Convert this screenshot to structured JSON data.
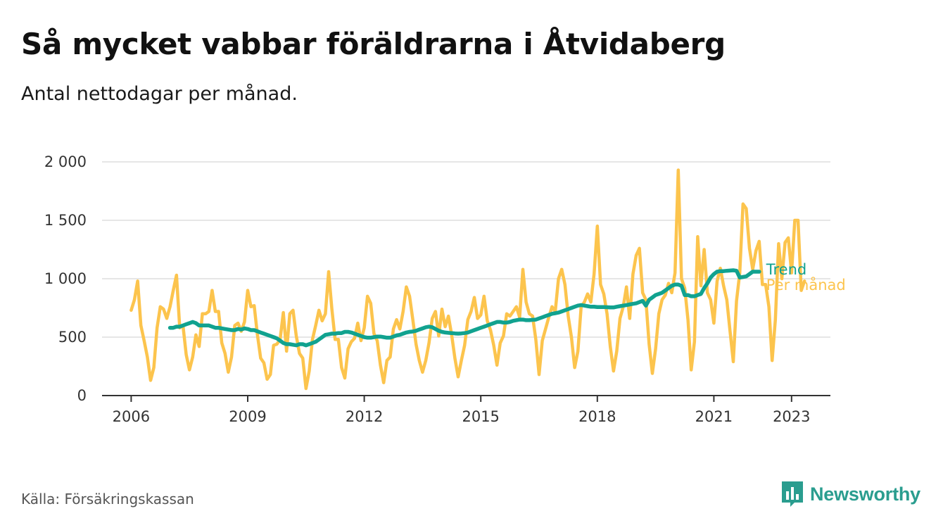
{
  "header": {
    "title": "Så mycket vabbar föräldrarna i Åtvidaberg",
    "subtitle": "Antal nettodagar per månad."
  },
  "footer": {
    "source": "Källa: Försäkringskassan",
    "brand": "Newsworthy",
    "brand_icon": "bar-chart-speech-bubble-icon"
  },
  "colors": {
    "monthly": "#fcc44d",
    "trend": "#11a28f",
    "axis": "#333333",
    "grid": "#dddddd",
    "brand": "#2a9d8f"
  },
  "chart_data": {
    "type": "line",
    "xlim": [
      2005.25,
      2024.0
    ],
    "ylim": [
      0,
      2000
    ],
    "grid": "horizontal",
    "x_ticks": [
      2006,
      2009,
      2012,
      2015,
      2018,
      2021,
      2023
    ],
    "x_tick_labels": [
      "2006",
      "2009",
      "2012",
      "2015",
      "2018",
      "2021",
      "2023"
    ],
    "y_ticks": [
      0,
      500,
      1000,
      1500,
      2000
    ],
    "y_tick_labels": [
      "0",
      "500",
      "1 000",
      "1 500",
      "2 000"
    ],
    "series": [
      {
        "name": "Per månad",
        "x_start": 2006.0,
        "x_step": 0.08333,
        "values": [
          730,
          820,
          980,
          600,
          470,
          330,
          130,
          240,
          580,
          760,
          740,
          660,
          760,
          900,
          1030,
          580,
          600,
          350,
          220,
          330,
          520,
          420,
          700,
          700,
          720,
          900,
          720,
          720,
          450,
          360,
          200,
          330,
          600,
          620,
          550,
          630,
          900,
          760,
          770,
          520,
          320,
          280,
          140,
          180,
          430,
          440,
          480,
          710,
          380,
          700,
          730,
          510,
          360,
          320,
          60,
          210,
          480,
          600,
          730,
          640,
          700,
          1060,
          740,
          480,
          480,
          240,
          150,
          400,
          460,
          490,
          620,
          470,
          580,
          850,
          790,
          530,
          470,
          260,
          110,
          300,
          330,
          570,
          650,
          570,
          720,
          930,
          850,
          650,
          440,
          300,
          200,
          300,
          450,
          660,
          720,
          510,
          740,
          590,
          680,
          520,
          320,
          160,
          300,
          430,
          650,
          720,
          840,
          660,
          690,
          850,
          640,
          560,
          430,
          260,
          450,
          510,
          700,
          680,
          720,
          760,
          670,
          1080,
          800,
          700,
          680,
          480,
          180,
          470,
          570,
          670,
          760,
          720,
          1000,
          1080,
          950,
          680,
          500,
          240,
          380,
          760,
          800,
          870,
          800,
          1040,
          1450,
          950,
          870,
          700,
          420,
          210,
          380,
          660,
          760,
          930,
          660,
          1040,
          1200,
          1260,
          880,
          820,
          440,
          190,
          400,
          700,
          820,
          860,
          960,
          880,
          1050,
          1930,
          1000,
          920,
          650,
          220,
          460,
          1360,
          940,
          1250,
          880,
          820,
          620,
          980,
          1090,
          940,
          820,
          550,
          290,
          810,
          1050,
          1640,
          1600,
          1260,
          1080,
          1240,
          1320,
          950,
          950,
          760,
          300,
          650,
          1300,
          1000,
          1310,
          1350,
          1050,
          1500,
          1500,
          900,
          980
        ]
      },
      {
        "name": "Trend",
        "x_start": 2007.0,
        "x_step": 0.08333,
        "values": [
          580,
          580,
          590,
          590,
          600,
          610,
          620,
          630,
          620,
          600,
          600,
          600,
          600,
          590,
          580,
          580,
          575,
          570,
          565,
          560,
          560,
          570,
          565,
          575,
          570,
          560,
          560,
          550,
          540,
          530,
          520,
          510,
          500,
          490,
          470,
          450,
          440,
          440,
          435,
          430,
          440,
          440,
          430,
          440,
          450,
          460,
          480,
          500,
          520,
          525,
          530,
          530,
          535,
          535,
          545,
          545,
          540,
          530,
          520,
          510,
          500,
          495,
          495,
          500,
          505,
          505,
          500,
          495,
          495,
          505,
          515,
          520,
          530,
          540,
          545,
          548,
          555,
          565,
          575,
          585,
          590,
          585,
          570,
          555,
          545,
          540,
          537,
          535,
          532,
          530,
          532,
          535,
          540,
          550,
          560,
          570,
          580,
          590,
          600,
          610,
          620,
          630,
          630,
          625,
          625,
          630,
          640,
          645,
          650,
          650,
          645,
          645,
          648,
          650,
          660,
          670,
          680,
          690,
          700,
          705,
          710,
          720,
          730,
          740,
          750,
          760,
          770,
          775,
          770,
          765,
          760,
          760,
          758,
          757,
          757,
          756,
          755,
          754,
          760,
          765,
          770,
          775,
          780,
          785,
          790,
          800,
          810,
          770,
          820,
          840,
          860,
          870,
          880,
          900,
          920,
          940,
          950,
          950,
          940,
          860,
          860,
          850,
          850,
          860,
          870,
          920,
          960,
          1010,
          1040,
          1060,
          1065,
          1065,
          1068,
          1070,
          1072,
          1068,
          1010,
          1015,
          1020,
          1040,
          1060,
          1060,
          1060
        ]
      }
    ],
    "annotations": {
      "trend_label": "Trend",
      "monthly_label": "Per månad"
    }
  }
}
